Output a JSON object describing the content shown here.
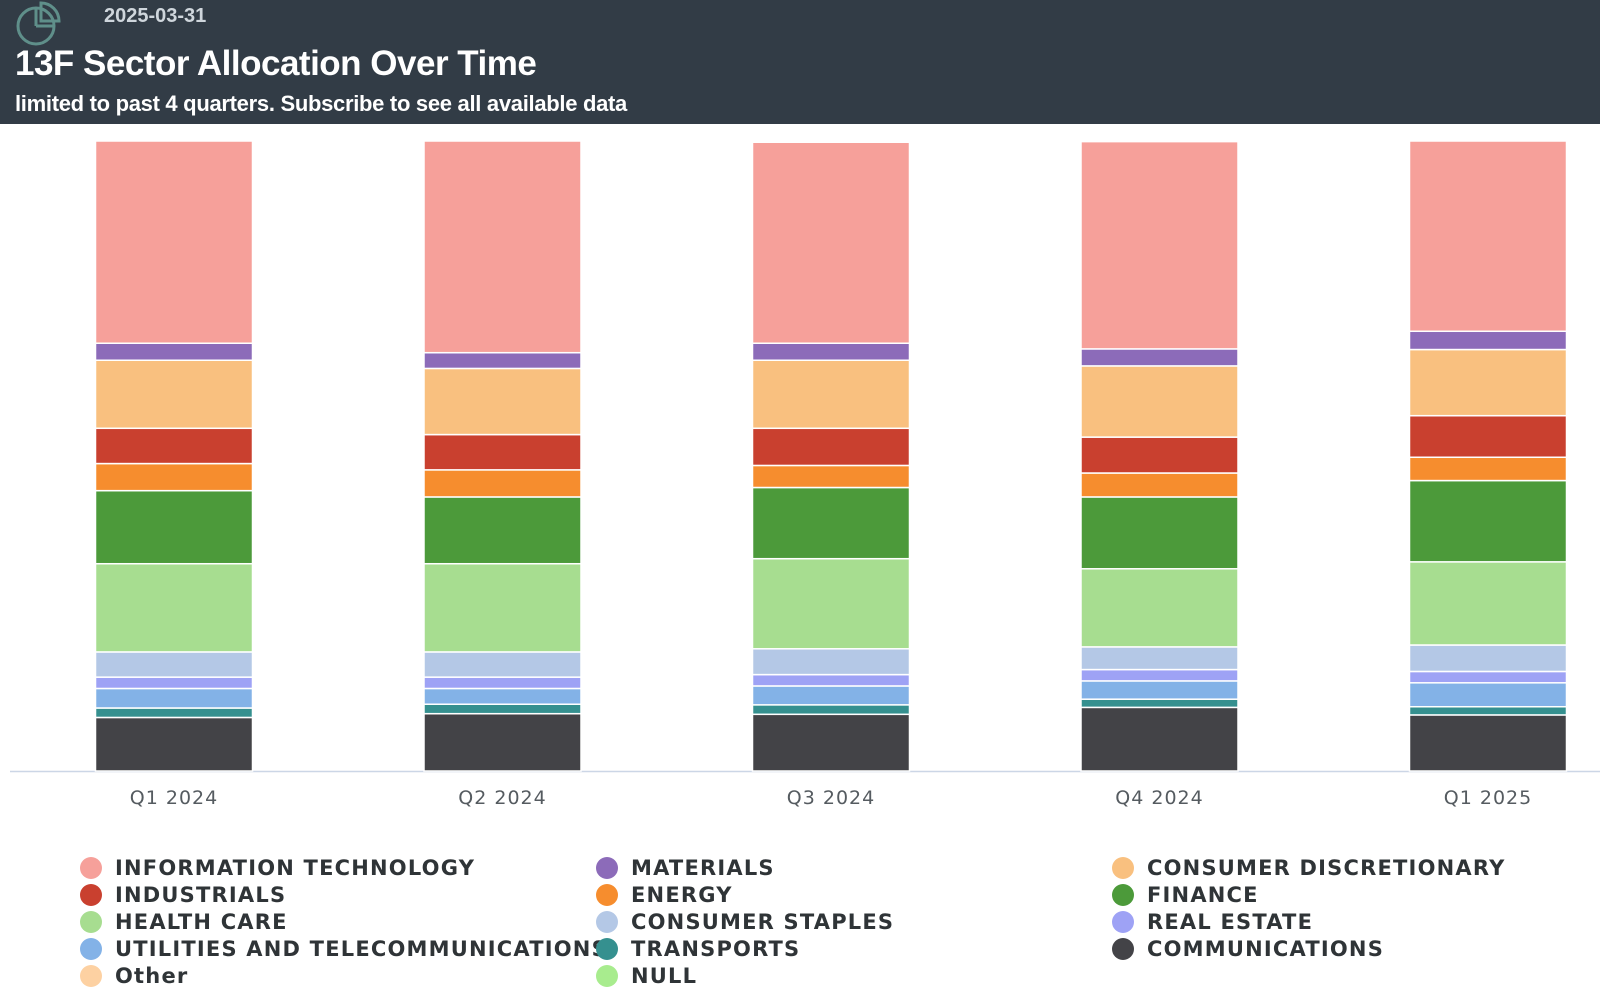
{
  "header": {
    "date": "2025-03-31",
    "title": "13F Sector Allocation Over Time",
    "subtitle": "limited to past 4 quarters. Subscribe to see all available data",
    "logo_icon": "pie-chart-icon"
  },
  "chart_data": {
    "type": "bar",
    "stacked": true,
    "normalized": true,
    "title": "13F Sector Allocation Over Time",
    "xlabel": "",
    "ylabel": "",
    "ylim": [
      0,
      100
    ],
    "grid": false,
    "legend_position": "bottom",
    "categories": [
      "Q1 2024",
      "Q2 2024",
      "Q3 2024",
      "Q4 2024",
      "Q1 2025"
    ],
    "stack_order_bottom_to_top": [
      "COMMUNICATIONS",
      "TRANSPORTS",
      "UTILITIES AND TELECOMMUNICATIONS",
      "REAL ESTATE",
      "CONSUMER STAPLES",
      "HEALTH CARE",
      "FINANCE",
      "ENERGY",
      "INDUSTRIALS",
      "CONSUMER DISCRETIONARY",
      "MATERIALS",
      "INFORMATION TECHNOLOGY"
    ],
    "series": [
      {
        "name": "INFORMATION TECHNOLOGY",
        "color": "#f6a09a",
        "values": [
          32.1,
          33.6,
          31.9,
          32.9,
          30.2
        ]
      },
      {
        "name": "MATERIALS",
        "color": "#8c6bb9",
        "values": [
          2.7,
          2.5,
          2.7,
          2.7,
          2.9
        ]
      },
      {
        "name": "CONSUMER DISCRETIONARY",
        "color": "#f9c07f",
        "values": [
          10.8,
          10.5,
          10.8,
          11.3,
          10.5
        ]
      },
      {
        "name": "INDUSTRIALS",
        "color": "#c9402f",
        "values": [
          5.6,
          5.6,
          5.9,
          5.7,
          6.6
        ]
      },
      {
        "name": "ENERGY",
        "color": "#f68d2e",
        "values": [
          4.3,
          4.3,
          3.5,
          3.8,
          3.7
        ]
      },
      {
        "name": "FINANCE",
        "color": "#4c9a3a",
        "values": [
          11.6,
          10.6,
          11.3,
          11.4,
          12.9
        ]
      },
      {
        "name": "HEALTH CARE",
        "color": "#a7dd90",
        "values": [
          14.0,
          14.0,
          14.3,
          12.4,
          13.2
        ]
      },
      {
        "name": "CONSUMER STAPLES",
        "color": "#b4c8e6",
        "values": [
          4.0,
          4.0,
          4.1,
          3.6,
          4.2
        ]
      },
      {
        "name": "REAL ESTATE",
        "color": "#9ea2f5",
        "values": [
          1.8,
          1.8,
          1.8,
          1.8,
          1.8
        ]
      },
      {
        "name": "UTILITIES AND TELECOMMUNICATIONS",
        "color": "#83b2e7",
        "values": [
          3.1,
          2.5,
          3.0,
          2.9,
          3.8
        ]
      },
      {
        "name": "TRANSPORTS",
        "color": "#35908f",
        "values": [
          1.5,
          1.5,
          1.5,
          1.3,
          1.3
        ]
      },
      {
        "name": "COMMUNICATIONS",
        "color": "#434347",
        "values": [
          8.5,
          9.1,
          9.0,
          10.1,
          8.9
        ]
      }
    ],
    "legend": [
      {
        "name": "INFORMATION TECHNOLOGY",
        "color": "#f6a09a"
      },
      {
        "name": "MATERIALS",
        "color": "#8c6bb9"
      },
      {
        "name": "CONSUMER DISCRETIONARY",
        "color": "#f9c07f"
      },
      {
        "name": "INDUSTRIALS",
        "color": "#c9402f"
      },
      {
        "name": "ENERGY",
        "color": "#f68d2e"
      },
      {
        "name": "FINANCE",
        "color": "#4c9a3a"
      },
      {
        "name": "HEALTH CARE",
        "color": "#a7dd90"
      },
      {
        "name": "CONSUMER STAPLES",
        "color": "#b4c8e6"
      },
      {
        "name": "REAL ESTATE",
        "color": "#9ea2f5"
      },
      {
        "name": "UTILITIES AND TELECOMMUNICATIONS",
        "color": "#83b2e7"
      },
      {
        "name": "TRANSPORTS",
        "color": "#35908f"
      },
      {
        "name": "COMMUNICATIONS",
        "color": "#434347"
      },
      {
        "name": "Other",
        "color": "#fdd1a2"
      },
      {
        "name": "NULL",
        "color": "#a8ec8e"
      }
    ]
  }
}
